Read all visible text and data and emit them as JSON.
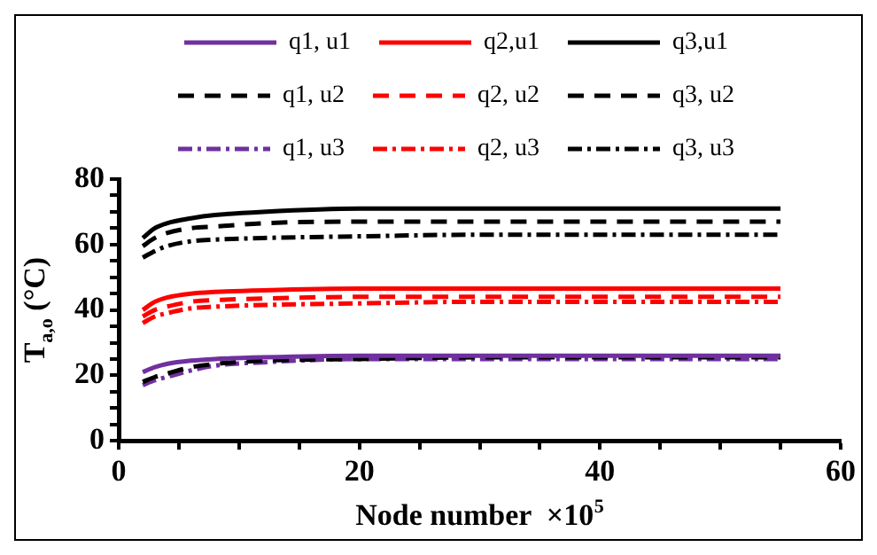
{
  "chart_data": {
    "type": "line",
    "xlabel": "Node number  ×10$^{5}$",
    "ylabel": "T$_{a,o}$ (°C)",
    "x": [
      2,
      3,
      4,
      6,
      8,
      12,
      20,
      30,
      40,
      55
    ],
    "series": [
      {
        "name": "q1, u1",
        "color": "#7030a0",
        "line_style": "solid",
        "values": [
          21,
          22.5,
          23.5,
          24.5,
          25,
          25.5,
          26,
          26,
          26,
          26
        ]
      },
      {
        "name": "q2,u1",
        "color": "#ff0000",
        "line_style": "solid",
        "values": [
          40,
          42.5,
          43.8,
          45,
          45.5,
          46,
          46.5,
          46.5,
          46.5,
          46.5
        ]
      },
      {
        "name": "q3,u1",
        "color": "#000000",
        "line_style": "solid",
        "values": [
          62,
          65,
          66.5,
          68,
          69,
          70,
          71,
          71,
          71,
          71
        ]
      },
      {
        "name": "q1, u2",
        "color": "#000000",
        "line_style": "dashed",
        "values": [
          18,
          19.5,
          20.5,
          22.5,
          23.5,
          24.5,
          25,
          25.5,
          25.5,
          25.5
        ]
      },
      {
        "name": "q2, u2",
        "color": "#ff0000",
        "line_style": "dashed",
        "values": [
          38,
          40,
          41,
          42.5,
          43,
          43.5,
          44,
          44,
          44,
          44
        ]
      },
      {
        "name": "q3, u2",
        "color": "#000000",
        "line_style": "dashed",
        "values": [
          59.5,
          62,
          63.5,
          65,
          65.5,
          66.5,
          67,
          67,
          67,
          67
        ]
      },
      {
        "name": "q1, u3",
        "color": "#7030a0",
        "line_style": "dashdot",
        "values": [
          17,
          18.5,
          19.5,
          21.5,
          23,
          24,
          25,
          25,
          25,
          25
        ]
      },
      {
        "name": "q2, u3",
        "color": "#ff0000",
        "line_style": "dashdot",
        "values": [
          36,
          38,
          39,
          40.5,
          41,
          41.5,
          42,
          42.5,
          42.5,
          42.5
        ]
      },
      {
        "name": "q3, u3",
        "color": "#000000",
        "line_style": "dashdot",
        "values": [
          56,
          58,
          59.5,
          61,
          61.5,
          62,
          62.5,
          63,
          63,
          63
        ]
      }
    ],
    "xlim": [
      0,
      60
    ],
    "xticks": [
      0,
      {
        "value": 5,
        "label": null
      },
      {
        "value": 10,
        "label": null
      },
      {
        "value": 15,
        "label": null
      },
      20,
      {
        "value": 25,
        "label": null
      },
      {
        "value": 30,
        "label": null
      },
      {
        "value": 35,
        "label": null
      },
      40,
      {
        "value": 45,
        "label": null
      },
      {
        "value": 50,
        "label": null
      },
      {
        "value": 55,
        "label": null
      },
      60
    ],
    "ylim": [
      0,
      80
    ],
    "yticks": [
      0,
      {
        "value": 5,
        "label": null
      },
      {
        "value": 10,
        "label": null
      },
      {
        "value": 15,
        "label": null
      },
      20,
      {
        "value": 25,
        "label": null
      },
      {
        "value": 30,
        "label": null
      },
      {
        "value": 35,
        "label": null
      },
      40,
      {
        "value": 45,
        "label": null
      },
      {
        "value": 50,
        "label": null
      },
      {
        "value": 55,
        "label": null
      },
      60,
      {
        "value": 65,
        "label": null
      },
      {
        "value": 70,
        "label": null
      },
      {
        "value": 75,
        "label": null
      },
      80
    ],
    "grid": false,
    "legend": "top",
    "marker": "none"
  }
}
